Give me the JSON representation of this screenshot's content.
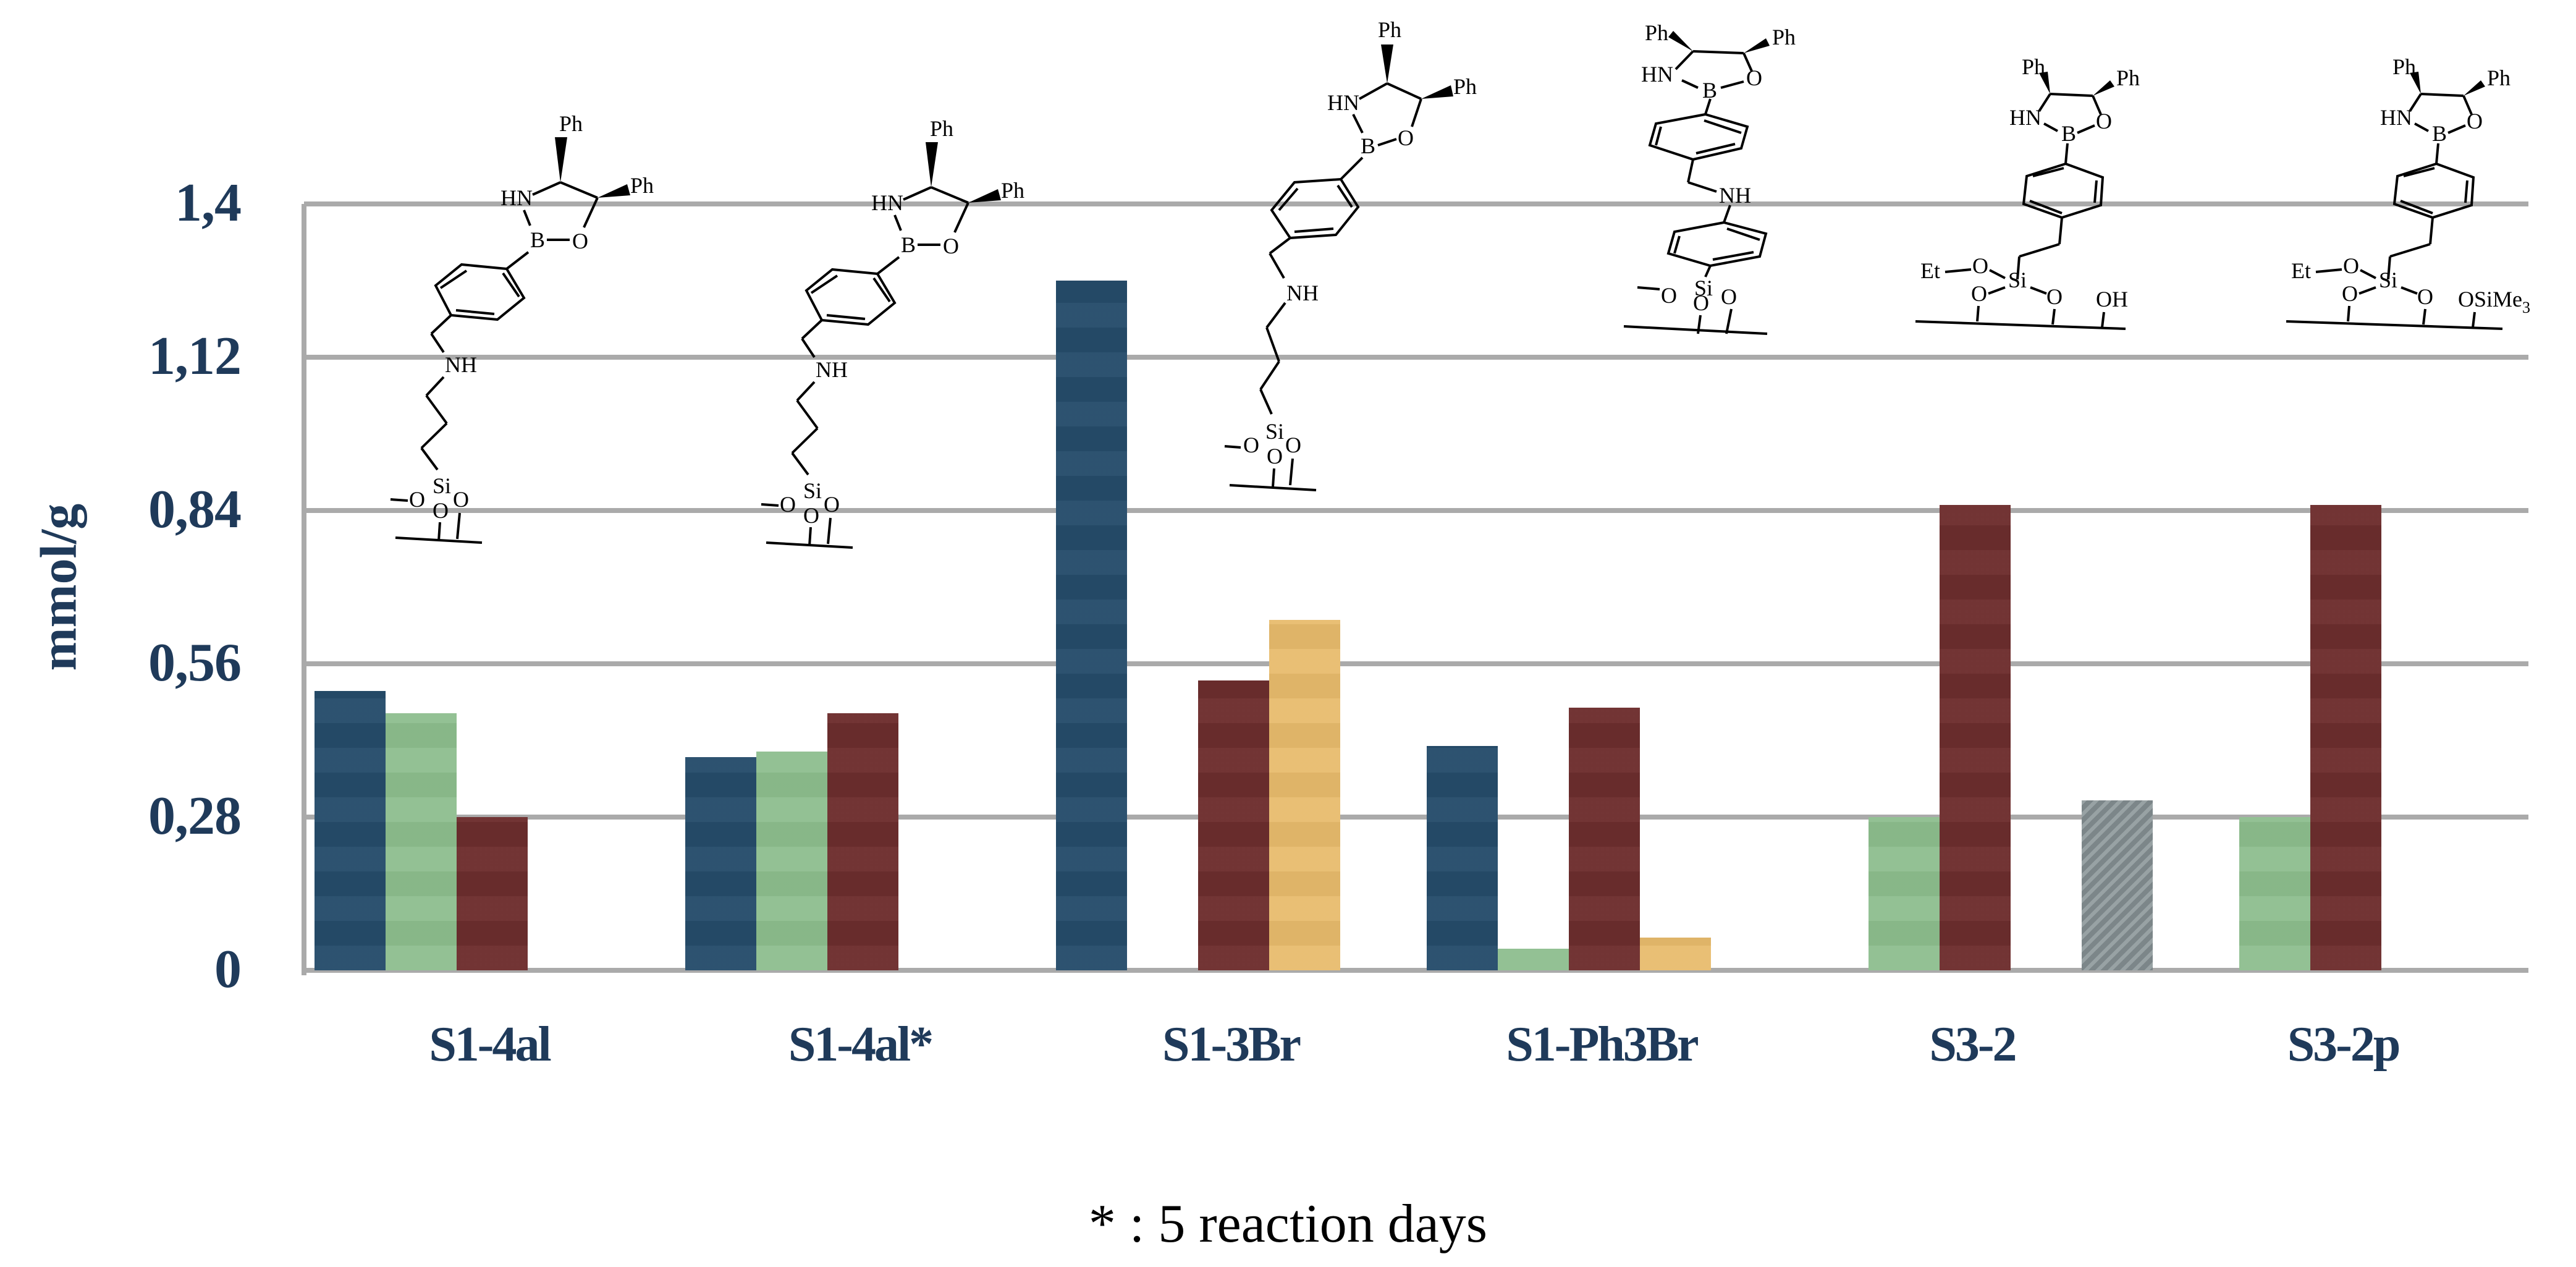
{
  "chart_data": {
    "type": "bar",
    "title": "",
    "xlabel": "",
    "ylabel": "mmol/g",
    "ylim": [
      0,
      1.4
    ],
    "yticks": [
      "0",
      "0,28",
      "0,56",
      "0,84",
      "1,12",
      "1,4"
    ],
    "grid": true,
    "legend": "none",
    "categories": [
      "S1-4al",
      "S1-4al*",
      "S1-3Br",
      "S1-Ph3Br",
      "S3-2",
      "S3-2p"
    ],
    "series": [
      {
        "name": "series-blue",
        "color": "#264d6b",
        "values": [
          0.51,
          0.39,
          1.26,
          0.41,
          null,
          null
        ]
      },
      {
        "name": "series-green",
        "color": "#8dbe8e",
        "values": [
          0.47,
          0.4,
          null,
          0.04,
          0.28,
          0.28
        ]
      },
      {
        "name": "series-red",
        "color": "#6e2e2e",
        "values": [
          0.28,
          0.47,
          0.53,
          0.48,
          0.85,
          0.85
        ]
      },
      {
        "name": "series-yellow",
        "color": "#e8bb6c",
        "values": [
          null,
          null,
          0.64,
          0.06,
          null,
          null
        ]
      },
      {
        "name": "series-grey",
        "color": "#8a9598",
        "values": [
          null,
          null,
          null,
          null,
          0.31,
          null
        ]
      }
    ],
    "annotations": [
      "* : 5 reaction days"
    ],
    "structure_labels": {
      "ring": [
        "Ph",
        "Ph",
        "HN",
        "B",
        "O"
      ],
      "linker_amine": "NH",
      "silane": [
        "Si",
        "O",
        "O",
        "O"
      ],
      "s3_silane": [
        "Et",
        "O",
        "Si",
        "O",
        "O"
      ],
      "s3_2_surface_group": "OH",
      "s3_2p_surface_group": "OSiMe3"
    }
  },
  "axis": {
    "ylabel": "mmol/g",
    "ticks": [
      {
        "label": "1,4",
        "value": 1.4
      },
      {
        "label": "1,12",
        "value": 1.12
      },
      {
        "label": "0,84",
        "value": 0.84
      },
      {
        "label": "0,56",
        "value": 0.56
      },
      {
        "label": "0,28",
        "value": 0.28
      },
      {
        "label": "0",
        "value": 0
      }
    ]
  },
  "categories": [
    {
      "label": "S1-4al"
    },
    {
      "label": "S1-4al*"
    },
    {
      "label": "S1-3Br"
    },
    {
      "label": "S1-Ph3Br"
    },
    {
      "label": "S3-2"
    },
    {
      "label": "S3-2p"
    }
  ],
  "mol": {
    "ph": "Ph",
    "hn": "HN",
    "b": "B",
    "o": "O",
    "nh": "NH",
    "si": "Si",
    "et": "Et",
    "oh": "OH",
    "osime": "OSiMe",
    "sub3": "3"
  },
  "footnote": "* : 5 reaction days"
}
